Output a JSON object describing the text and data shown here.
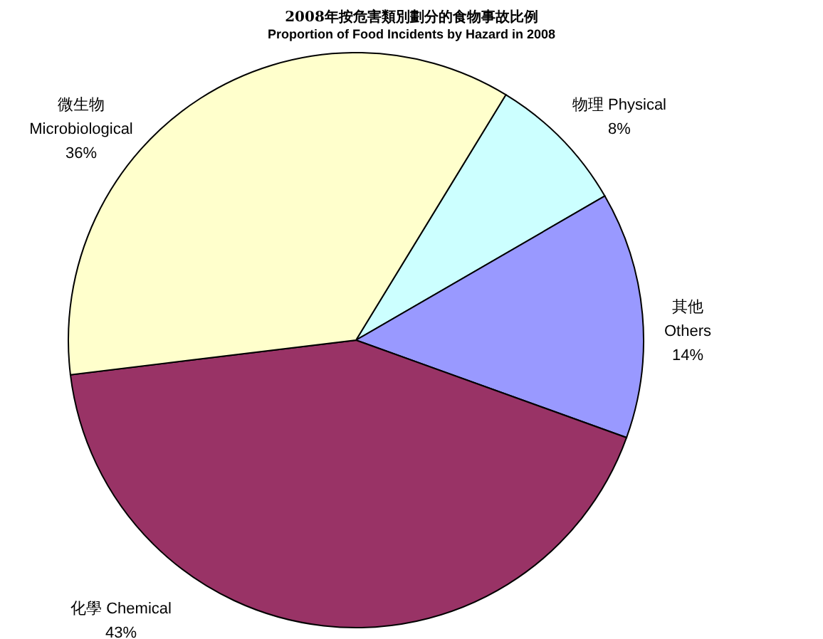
{
  "chart_data": {
    "type": "pie",
    "title": "2008年按危害類別劃分的食物事故比例",
    "subtitle": "Proportion of Food Incidents by Hazard in 2008",
    "categories": [
      "物理 Physical",
      "其他\nOthers",
      "化學 Chemical",
      "微生物\nMicrobiological"
    ],
    "values": [
      8,
      14,
      43,
      36
    ],
    "colors": [
      "#ccffff",
      "#9999ff",
      "#993366",
      "#ffffcc"
    ],
    "value_labels": [
      "8%",
      "14%",
      "43%",
      "36%"
    ]
  }
}
